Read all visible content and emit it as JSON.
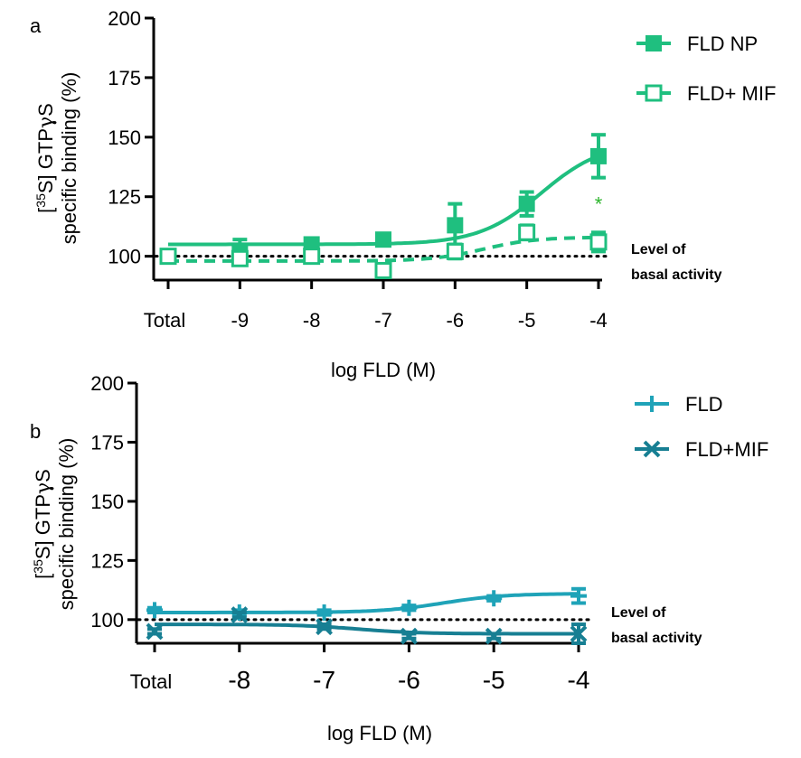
{
  "chart_data": [
    {
      "panel_label": "a",
      "type": "line",
      "ylabel_line1_prefix": "[",
      "ylabel_line1_sup": "35",
      "ylabel_line1_main": "S] GTP",
      "ylabel_line1_greek": "γ",
      "ylabel_line1_end": "S",
      "ylabel_line2": "specific binding (%)",
      "xlabel": "log FLD (M)",
      "ylim": [
        90,
        200
      ],
      "yticks": [
        100,
        125,
        150,
        175,
        200
      ],
      "xticks": [
        "Total",
        "-9",
        "-8",
        "-7",
        "-6",
        "-5",
        "-4"
      ],
      "x_positions": [
        -10,
        -9,
        -8,
        -7,
        -6,
        -5,
        -4
      ],
      "xlim": [
        -10,
        -4
      ],
      "baseline": 100,
      "baseline_label_line1": "Level of",
      "baseline_label_line2": "basal activity",
      "annotation": "*",
      "annotation_color": "#2db52d",
      "legend_position": "top-right",
      "series": [
        {
          "name": "FLD NP",
          "color": "#1fbf7f",
          "marker": "square-filled",
          "line": "solid",
          "x": [
            -10,
            -9,
            -8,
            -7,
            -6,
            -5,
            -4
          ],
          "y": [
            100,
            102,
            105,
            107,
            113,
            122,
            142
          ],
          "err": [
            2,
            5,
            2,
            2,
            9,
            5,
            9
          ],
          "fit": {
            "bottom": 105,
            "top": 148,
            "logEC50": -4.8,
            "hill": 1
          }
        },
        {
          "name": "FLD+ MIF",
          "color": "#1fbf7f",
          "marker": "square-open",
          "line": "dashed",
          "x": [
            -10,
            -9,
            -8,
            -7,
            -6,
            -5,
            -4
          ],
          "y": [
            100,
            99,
            100,
            94,
            102,
            110,
            106
          ],
          "err": [
            1,
            2,
            1,
            2,
            3,
            3,
            4
          ],
          "fit": {
            "bottom": 98,
            "top": 108,
            "logEC50": -5.6,
            "hill": 1.2
          }
        }
      ]
    },
    {
      "panel_label": "b",
      "type": "line",
      "ylabel_line1_prefix": "[",
      "ylabel_line1_sup": "35",
      "ylabel_line1_main": "S] GTP",
      "ylabel_line1_greek": "γ",
      "ylabel_line1_end": "S",
      "ylabel_line2": "specific binding (%)",
      "xlabel": "log FLD (M)",
      "ylim": [
        90,
        200
      ],
      "yticks": [
        100,
        125,
        150,
        175,
        200
      ],
      "xticks": [
        "Total",
        "-8",
        "-7",
        "-6",
        "-5",
        "-4"
      ],
      "x_positions": [
        -9,
        -8,
        -7,
        -6,
        -5,
        -4
      ],
      "xlim": [
        -9,
        -4
      ],
      "baseline": 100,
      "baseline_label_line1": "Level of",
      "baseline_label_line2": "basal activity",
      "legend_position": "top-right",
      "series": [
        {
          "name": "FLD",
          "color": "#1fa3b8",
          "marker": "plus",
          "line": "solid",
          "x": [
            -9,
            -8,
            -7,
            -6,
            -5,
            -4
          ],
          "y": [
            104,
            103,
            103,
            105,
            109,
            110
          ],
          "err": [
            1,
            1,
            1,
            1,
            1,
            3
          ],
          "fit": {
            "bottom": 103,
            "top": 111,
            "logEC50": -5.6,
            "hill": 1.2
          }
        },
        {
          "name": "FLD+MIF",
          "color": "#177f93",
          "marker": "x",
          "line": "solid",
          "x": [
            -9,
            -8,
            -7,
            -6,
            -5,
            -4
          ],
          "y": [
            95,
            102,
            97,
            93,
            93,
            94
          ],
          "err": [
            1,
            1,
            1,
            1,
            1,
            4
          ],
          "fit": {
            "bottom": 98,
            "top": 94,
            "logEC50": -6.6,
            "hill": 1.2
          }
        }
      ]
    }
  ]
}
